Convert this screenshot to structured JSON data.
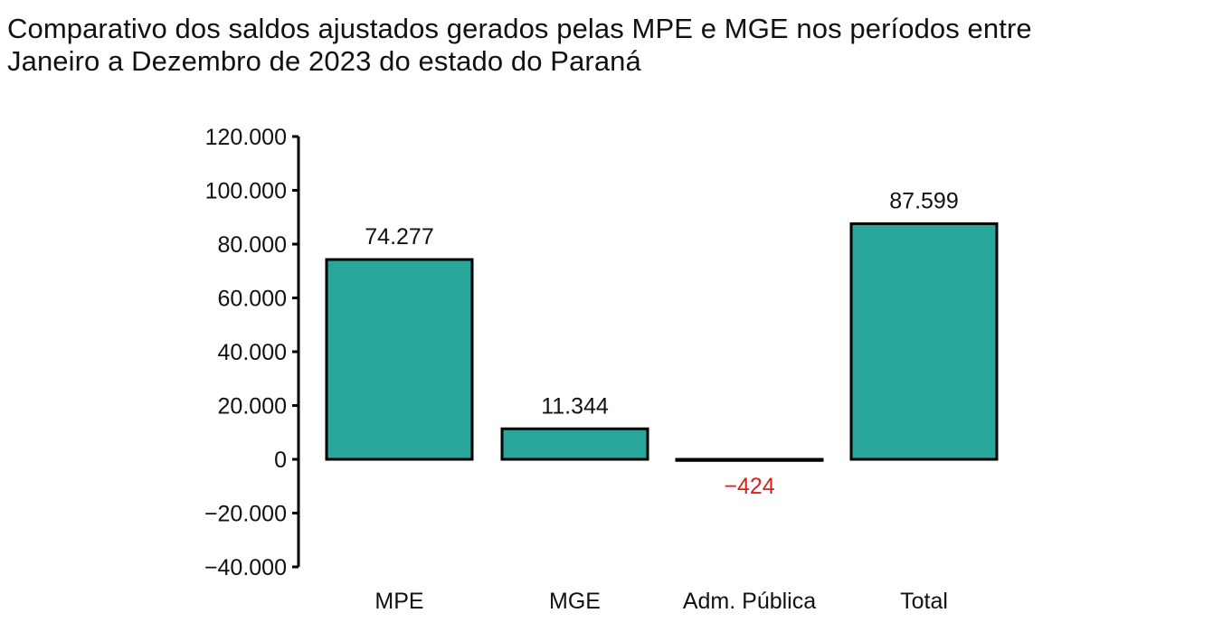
{
  "chart_data": {
    "type": "bar",
    "title_line1": "Comparativo dos saldos ajustados gerados pelas MPE e MGE nos períodos entre",
    "title_line2": "Janeiro a Dezembro de 2023 do estado do Paraná",
    "categories": [
      "MPE",
      "MGE",
      "Adm. Pública",
      "Total"
    ],
    "values": [
      74277,
      11344,
      -424,
      87599
    ],
    "data_labels": [
      "74.277",
      "11.344",
      "−424",
      "87.599"
    ],
    "xlabel": "",
    "ylabel": "",
    "ylim": [
      -40000,
      120000
    ],
    "yticks": [
      120000,
      100000,
      80000,
      60000,
      40000,
      20000,
      0,
      -20000,
      -40000
    ],
    "ytick_labels": [
      "120.000",
      "100.000",
      "80.000",
      "60.000",
      "40.000",
      "20.000",
      "0",
      "−20.000",
      "−40.000"
    ],
    "grid": false,
    "colors": {
      "bar": "#28a69a",
      "outline": "#000000",
      "negative_label": "#e0201c",
      "label": "#111111"
    }
  }
}
